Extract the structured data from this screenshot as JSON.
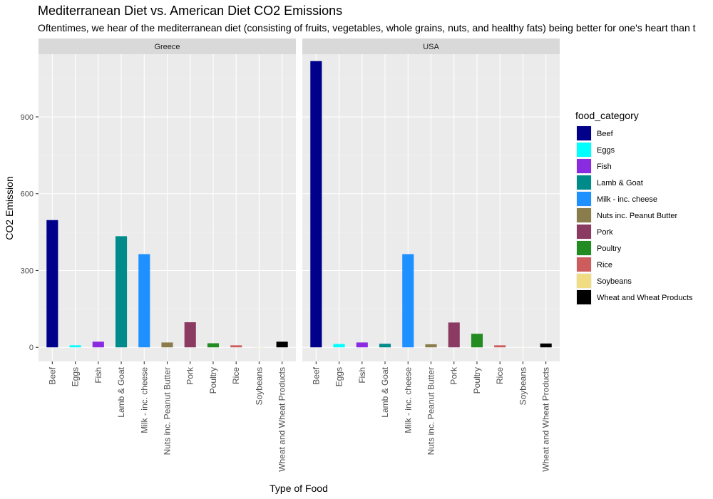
{
  "chart_data": {
    "type": "bar",
    "title": "Mediterranean Diet vs. American Diet CO2 Emissions",
    "subtitle": "Oftentimes, we hear of the mediterranean diet (consisting of fruits, vegetables, whole grains, nuts, and healthy fats) being better for one's heart than t",
    "xlabel": "Type of Food",
    "ylabel": "CO2 Emission",
    "ylim": [
      -55,
      1145
    ],
    "yticks": [
      0,
      300,
      600,
      900
    ],
    "grid": true,
    "legend_title": "food_category",
    "legend_position": "right",
    "categories": [
      "Beef",
      "Eggs",
      "Fish",
      "Lamb & Goat",
      "Milk - inc. cheese",
      "Nuts inc. Peanut Butter",
      "Pork",
      "Poultry",
      "Rice",
      "Soybeans",
      "Wheat and Wheat Products"
    ],
    "colors": [
      "#00008B",
      "#00FFFF",
      "#8A2BE2",
      "#008B8B",
      "#1E90FF",
      "#8B7D4B",
      "#8B3A62",
      "#228B22",
      "#CD5C5C",
      "#F0DC82",
      "#000000"
    ],
    "panels": [
      {
        "name": "Greece",
        "values": [
          497,
          8,
          22,
          434,
          364,
          19,
          98,
          16,
          8,
          0.5,
          22
        ]
      },
      {
        "name": "USA",
        "values": [
          1118,
          13,
          19,
          14,
          364,
          12,
          97,
          53,
          8,
          0.2,
          15
        ]
      }
    ]
  }
}
